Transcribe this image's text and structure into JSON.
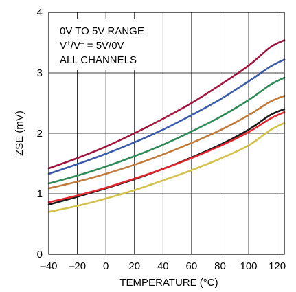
{
  "chart_data": {
    "type": "line",
    "title": "",
    "xlabel": "TEMPERATURE (°C)",
    "ylabel": "ZSE (mV)",
    "xlim": [
      -40,
      125
    ],
    "ylim": [
      0,
      4
    ],
    "xticks": [
      -40,
      -20,
      0,
      20,
      40,
      60,
      80,
      100,
      120
    ],
    "xtick_labels": [
      "–40",
      "–20",
      "0",
      "20",
      "40",
      "60",
      "80",
      "100",
      "120"
    ],
    "yticks": [
      0,
      1,
      2,
      3,
      4
    ],
    "ytick_labels": [
      "0",
      "1",
      "2",
      "3",
      "4"
    ],
    "grid": true,
    "legend": "none",
    "annotation": {
      "line1": "0V TO 5V RANGE",
      "line2_base": "V",
      "line2_sup1": "+",
      "line2_mid": "/V",
      "line2_sup2": "–",
      "line2_end": " = 5V/0V",
      "line3": "ALL CHANNELS"
    },
    "x": [
      -40,
      -20,
      0,
      20,
      40,
      60,
      80,
      100,
      115,
      125
    ],
    "series": [
      {
        "color": "#a0153e",
        "values": [
          1.42,
          1.59,
          1.78,
          2.0,
          2.24,
          2.5,
          2.8,
          3.12,
          3.42,
          3.54
        ]
      },
      {
        "color": "#3a5ba9",
        "values": [
          1.33,
          1.49,
          1.66,
          1.85,
          2.06,
          2.3,
          2.56,
          2.86,
          3.1,
          3.22
        ]
      },
      {
        "color": "#2e8b57",
        "values": [
          1.17,
          1.3,
          1.45,
          1.62,
          1.81,
          2.03,
          2.27,
          2.55,
          2.8,
          2.92
        ]
      },
      {
        "color": "#c07a3a",
        "values": [
          1.09,
          1.2,
          1.33,
          1.48,
          1.65,
          1.84,
          2.05,
          2.3,
          2.52,
          2.62
        ]
      },
      {
        "color": "#1a1a1a",
        "values": [
          0.82,
          0.95,
          1.09,
          1.24,
          1.41,
          1.6,
          1.81,
          2.06,
          2.3,
          2.4
        ]
      },
      {
        "color": "#e3272f",
        "values": [
          0.86,
          0.97,
          1.1,
          1.25,
          1.41,
          1.59,
          1.79,
          2.02,
          2.24,
          2.35
        ]
      },
      {
        "color": "#d4c24a",
        "values": [
          0.7,
          0.8,
          0.92,
          1.06,
          1.22,
          1.39,
          1.58,
          1.8,
          2.05,
          2.17
        ]
      }
    ]
  }
}
